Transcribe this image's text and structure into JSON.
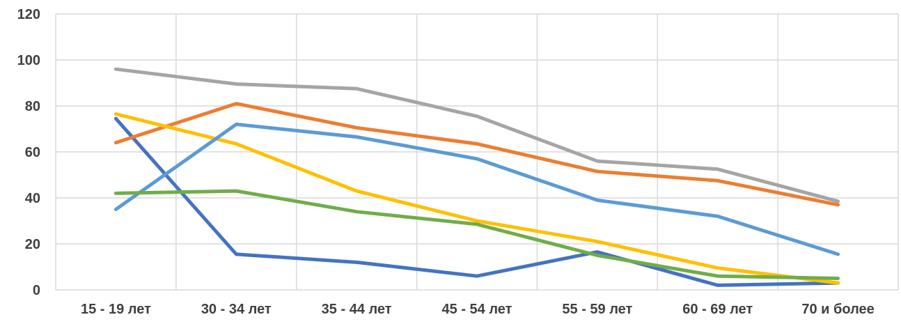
{
  "chart_data": {
    "type": "line",
    "title": "",
    "xlabel": "",
    "ylabel": "",
    "categories": [
      "15 - 19 лет",
      "30 - 34  лет",
      "35 - 44 лет",
      "45 - 54 лет",
      "55 - 59 лет",
      "60 - 69 лет",
      "70 и более"
    ],
    "ylim": [
      0,
      120
    ],
    "yticks": [
      0,
      20,
      40,
      60,
      80,
      100,
      120
    ],
    "grid": "on",
    "legend": "none",
    "series": [
      {
        "color": "#4472C4",
        "values": [
          74.5,
          15.5,
          12.0,
          6.0,
          16.5,
          2.0,
          3.0
        ]
      },
      {
        "color": "#ED7D31",
        "values": [
          64.0,
          81.0,
          70.5,
          63.5,
          51.5,
          47.5,
          37.0
        ]
      },
      {
        "color": "#A5A5A5",
        "values": [
          96.0,
          89.5,
          87.5,
          75.5,
          56.0,
          52.5,
          38.5
        ]
      },
      {
        "color": "#FFC000",
        "values": [
          76.5,
          63.5,
          43.0,
          30.0,
          21.0,
          9.5,
          3.0
        ]
      },
      {
        "color": "#5B9BD5",
        "values": [
          35.0,
          72.0,
          66.5,
          57.0,
          39.0,
          32.0,
          15.5
        ]
      },
      {
        "color": "#70AD47",
        "values": [
          42.0,
          43.0,
          34.0,
          28.5,
          15.0,
          6.0,
          5.0
        ]
      }
    ]
  }
}
